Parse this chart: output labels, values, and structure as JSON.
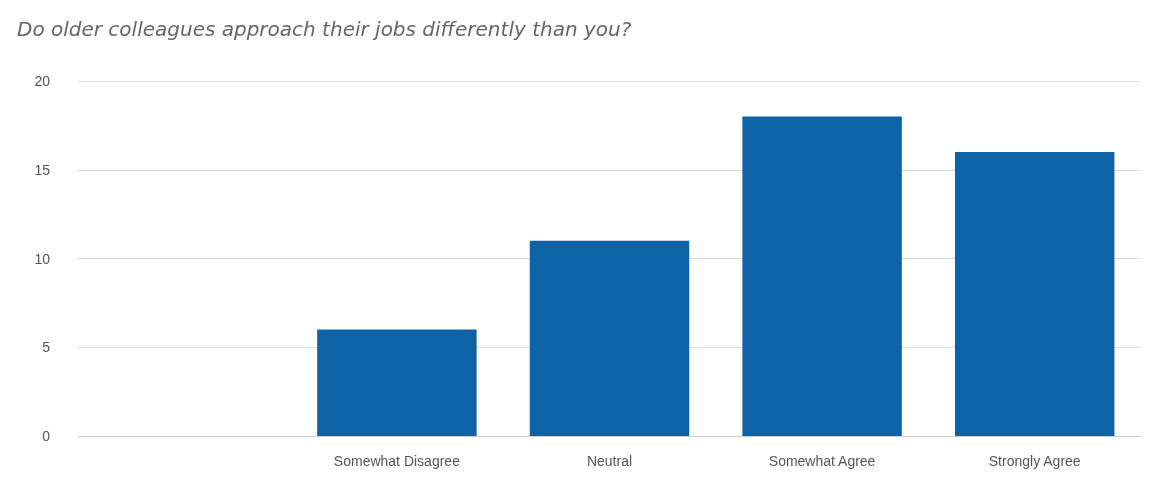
{
  "chart_data": {
    "type": "bar",
    "title": "Do older colleagues approach their jobs differently than you?",
    "categories": [
      null,
      "Somewhat Disagree",
      "Neutral",
      "Somewhat Agree",
      "Strongly Agree"
    ],
    "values": [
      0,
      6,
      11,
      18,
      16
    ],
    "color": "#0d63a5",
    "ylim": [
      0,
      20
    ],
    "yticks": [
      0,
      5,
      10,
      15,
      20
    ],
    "grid": "y"
  }
}
